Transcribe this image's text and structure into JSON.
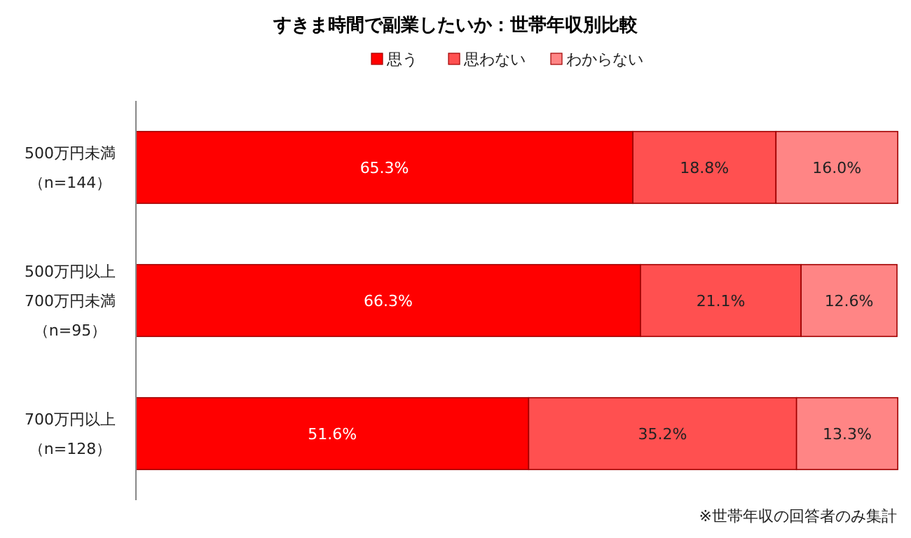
{
  "chart_data": {
    "type": "bar",
    "orientation": "horizontal",
    "stacked": true,
    "title": "すきま時間で副業したいか：世帯年収別比較",
    "categories": [
      "500万円未満（n=144）",
      "500万円以上700万円未満（n=95）",
      "700万円以上（n=128）"
    ],
    "series": [
      {
        "name": "思う",
        "color": "#ff0000",
        "values": [
          65.3,
          66.3,
          51.6
        ],
        "value_labels": [
          "65.3%",
          "66.3%",
          "51.6%"
        ]
      },
      {
        "name": "思わない",
        "color": "#ff5050",
        "values": [
          18.8,
          21.1,
          35.2
        ],
        "value_labels": [
          "18.8%",
          "21.1%",
          "35.2%"
        ]
      },
      {
        "name": "わからない",
        "color": "#ff8585",
        "values": [
          16.0,
          12.6,
          13.3
        ],
        "value_labels": [
          "16.0%",
          "12.6%",
          "13.3%"
        ]
      }
    ],
    "xlim": [
      0,
      100
    ],
    "legend": "top",
    "annotations": [
      "※世帯年収の回答者のみ集計"
    ]
  }
}
